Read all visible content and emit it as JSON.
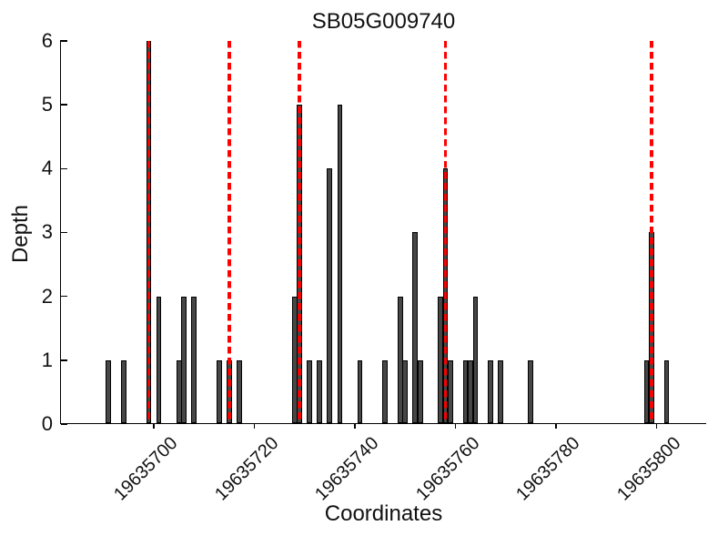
{
  "chart_data": {
    "type": "bar",
    "title": "SB05G009740",
    "xlabel": "Coordinates",
    "ylabel": "Depth",
    "ylim": [
      0,
      6
    ],
    "yticks": [
      0,
      1,
      2,
      3,
      4,
      5,
      6
    ],
    "xticks": [
      19635700,
      19635720,
      19635740,
      19635760,
      19635780,
      19635800
    ],
    "xlim": [
      19635681,
      19635810
    ],
    "grid": false,
    "legend": null,
    "bar_color": "#474747",
    "bar_edge_color": "#000000",
    "marker_line_color": "#ff0000",
    "marker_line_style": "dashed",
    "bars": [
      {
        "pos": 19635691,
        "depth": 1
      },
      {
        "pos": 19635694,
        "depth": 1
      },
      {
        "pos": 19635699,
        "depth": 6
      },
      {
        "pos": 19635701,
        "depth": 2
      },
      {
        "pos": 19635705,
        "depth": 1
      },
      {
        "pos": 19635706,
        "depth": 2
      },
      {
        "pos": 19635708,
        "depth": 2
      },
      {
        "pos": 19635713,
        "depth": 1
      },
      {
        "pos": 19635715,
        "depth": 1
      },
      {
        "pos": 19635717,
        "depth": 1
      },
      {
        "pos": 19635728,
        "depth": 2
      },
      {
        "pos": 19635729,
        "depth": 5
      },
      {
        "pos": 19635731,
        "depth": 1
      },
      {
        "pos": 19635733,
        "depth": 1
      },
      {
        "pos": 19635735,
        "depth": 4
      },
      {
        "pos": 19635737,
        "depth": 5
      },
      {
        "pos": 19635741,
        "depth": 1
      },
      {
        "pos": 19635746,
        "depth": 1
      },
      {
        "pos": 19635749,
        "depth": 2
      },
      {
        "pos": 19635750,
        "depth": 1
      },
      {
        "pos": 19635752,
        "depth": 3
      },
      {
        "pos": 19635753,
        "depth": 1
      },
      {
        "pos": 19635757,
        "depth": 2
      },
      {
        "pos": 19635758,
        "depth": 4
      },
      {
        "pos": 19635759,
        "depth": 1
      },
      {
        "pos": 19635762,
        "depth": 1
      },
      {
        "pos": 19635763,
        "depth": 1
      },
      {
        "pos": 19635764,
        "depth": 2
      },
      {
        "pos": 19635767,
        "depth": 1
      },
      {
        "pos": 19635769,
        "depth": 1
      },
      {
        "pos": 19635775,
        "depth": 1
      },
      {
        "pos": 19635798,
        "depth": 1
      },
      {
        "pos": 19635799,
        "depth": 3
      },
      {
        "pos": 19635802,
        "depth": 1
      }
    ],
    "marker_lines": [
      19635699,
      19635715,
      19635729,
      19635758,
      19635799
    ]
  }
}
